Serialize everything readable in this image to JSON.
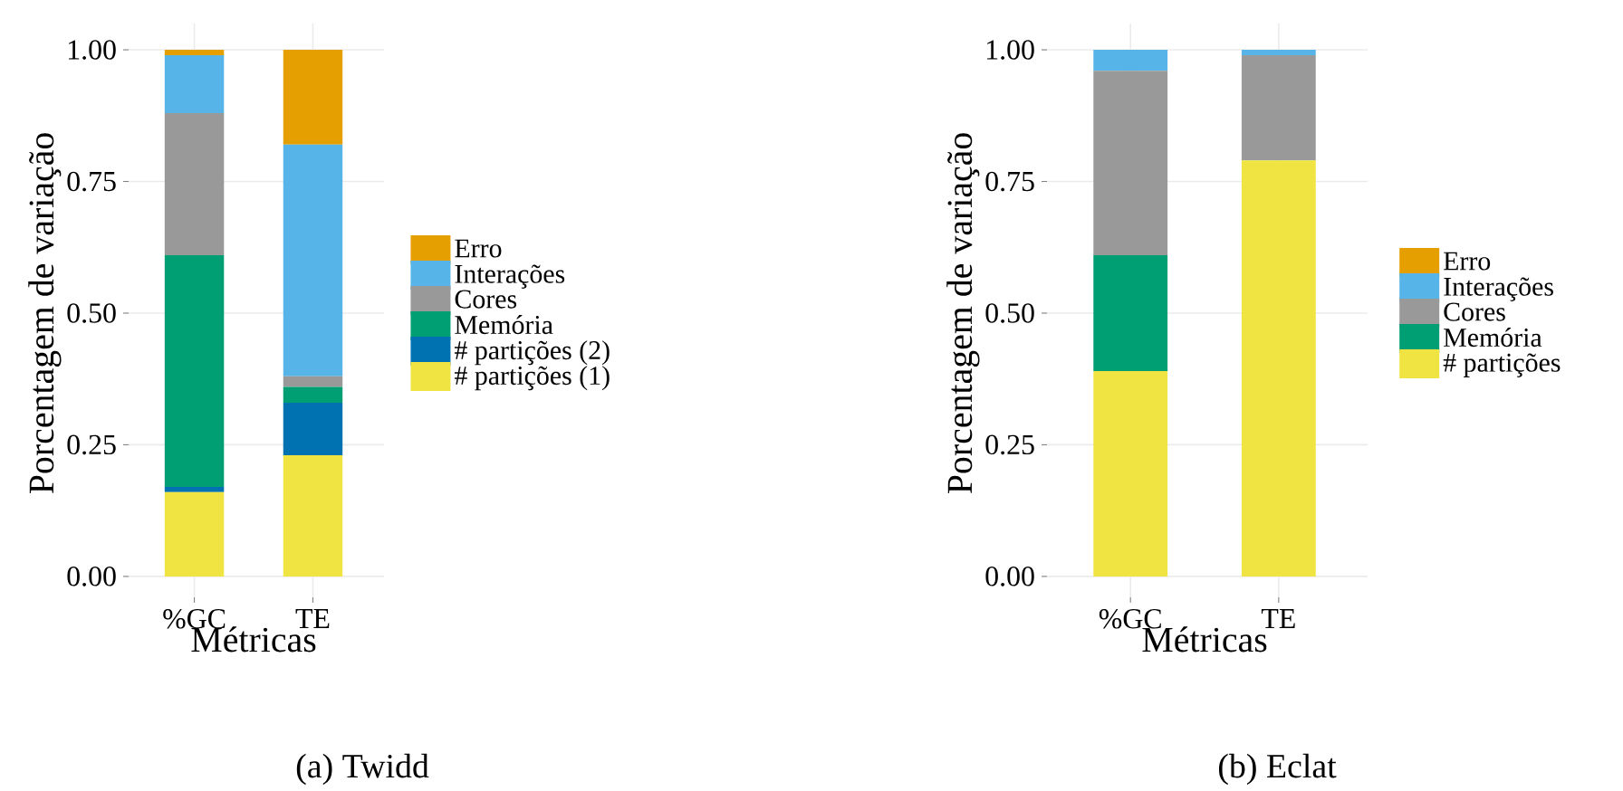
{
  "chart_data": [
    {
      "type": "bar",
      "stacked": true,
      "title": "(a) Twidd",
      "xlabel": "Métricas",
      "ylabel": "Porcentagem de variação",
      "categories": [
        "%GC",
        "TE"
      ],
      "series": [
        {
          "name": "# partições (1)",
          "color": "#f0e442",
          "values": [
            0.16,
            0.23
          ]
        },
        {
          "name": "# partições (2)",
          "color": "#0072b2",
          "values": [
            0.01,
            0.1
          ]
        },
        {
          "name": "Memória",
          "color": "#009e73",
          "values": [
            0.44,
            0.03
          ]
        },
        {
          "name": "Cores",
          "color": "#999999",
          "values": [
            0.27,
            0.02
          ]
        },
        {
          "name": "Interações",
          "color": "#56b4e9",
          "values": [
            0.11,
            0.44
          ]
        },
        {
          "name": "Erro",
          "color": "#e69f00",
          "values": [
            0.01,
            0.18
          ]
        }
      ],
      "ylim": [
        -0.05,
        1.05
      ],
      "yticks": [
        {
          "value": 0,
          "label": "0.00"
        },
        {
          "value": 0.25,
          "label": "0.25"
        },
        {
          "value": 0.5,
          "label": "0.50"
        },
        {
          "value": 0.75,
          "label": "0.75"
        },
        {
          "value": 1,
          "label": "1.00"
        }
      ],
      "grid": true,
      "legend": "right"
    },
    {
      "type": "bar",
      "stacked": true,
      "title": "(b) Eclat",
      "xlabel": "Métricas",
      "ylabel": "Porcentagem de variação",
      "categories": [
        "%GC",
        "TE"
      ],
      "series": [
        {
          "name": "# partições",
          "color": "#f0e442",
          "values": [
            0.39,
            0.79
          ]
        },
        {
          "name": "Memória",
          "color": "#009e73",
          "values": [
            0.22,
            0
          ]
        },
        {
          "name": "Cores",
          "color": "#999999",
          "values": [
            0.35,
            0.2
          ]
        },
        {
          "name": "Interações",
          "color": "#56b4e9",
          "values": [
            0.04,
            0.01
          ]
        },
        {
          "name": "Erro",
          "color": "#e69f00",
          "values": [
            0,
            0
          ]
        }
      ],
      "ylim": [
        -0.05,
        1.05
      ],
      "yticks": [
        {
          "value": 0,
          "label": "0.00"
        },
        {
          "value": 0.25,
          "label": "0.25"
        },
        {
          "value": 0.5,
          "label": "0.50"
        },
        {
          "value": 0.75,
          "label": "0.75"
        },
        {
          "value": 1,
          "label": "1.00"
        }
      ],
      "grid": true,
      "legend": "right"
    }
  ]
}
